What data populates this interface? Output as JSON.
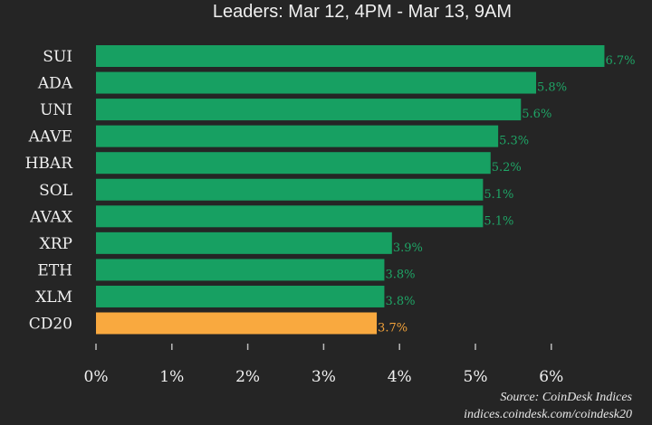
{
  "chart_data": {
    "type": "bar",
    "orientation": "horizontal",
    "subtitle": "Leaders: Mar 12, 4PM - Mar 13, 9AM",
    "categories": [
      "SUI",
      "ADA",
      "UNI",
      "AAVE",
      "HBAR",
      "SOL",
      "AVAX",
      "XRP",
      "ETH",
      "XLM",
      "CD20"
    ],
    "values": [
      6.7,
      5.8,
      5.6,
      5.3,
      5.2,
      5.1,
      5.1,
      3.9,
      3.8,
      3.8,
      3.7
    ],
    "value_labels": [
      "6.7%",
      "5.8%",
      "5.6%",
      "5.3%",
      "5.2%",
      "5.1%",
      "5.1%",
      "3.9%",
      "3.8%",
      "3.8%",
      "3.7%"
    ],
    "highlight": "CD20",
    "xticks": [
      "0%",
      "1%",
      "2%",
      "3%",
      "4%",
      "5%",
      "6%"
    ],
    "xlim": [
      0,
      6.7
    ],
    "grid": false,
    "source": "Source: CoinDesk Indices",
    "url": "indices.coindesk.com/coindesk20"
  },
  "colors": {
    "bar": "#17a062",
    "highlight": "#f9a93f",
    "label": "#1fa566",
    "highlight_label": "#f2a23a",
    "background": "#252525"
  }
}
